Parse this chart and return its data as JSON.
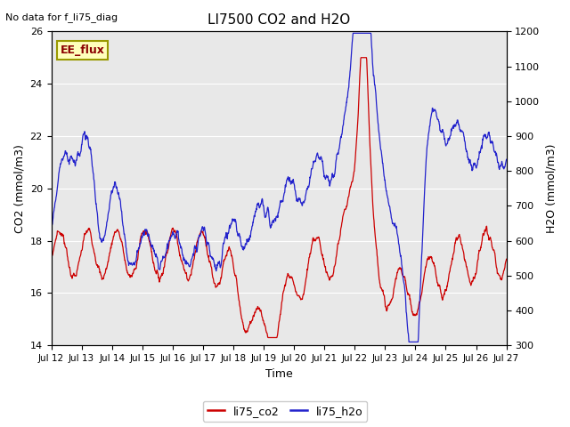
{
  "title": "LI7500 CO2 and H2O",
  "xlabel": "Time",
  "ylabel_left": "CO2 (mmol/m3)",
  "ylabel_right": "H2O (mmol/m3)",
  "top_left_text": "No data for f_li75_diag",
  "annotation_text": "EE_flux",
  "ylim_left": [
    14,
    26
  ],
  "ylim_right": [
    300,
    1200
  ],
  "yticks_left": [
    14,
    16,
    18,
    20,
    22,
    24,
    26
  ],
  "yticks_right": [
    300,
    400,
    500,
    600,
    700,
    800,
    900,
    1000,
    1100,
    1200
  ],
  "xtick_labels": [
    "Jul 12",
    "Jul 13",
    "Jul 14",
    "Jul 15",
    "Jul 16",
    "Jul 17",
    "Jul 18",
    "Jul 19",
    "Jul 20",
    "Jul 21",
    "Jul 22",
    "Jul 23",
    "Jul 24",
    "Jul 25",
    "Jul 26",
    "Jul 27"
  ],
  "color_co2": "#cc0000",
  "color_h2o": "#2222cc",
  "legend_co2": "li75_co2",
  "legend_h2o": "li75_h2o",
  "background_color": "#e8e8e8",
  "fig_background": "#ffffff",
  "annotation_bg": "#ffffbb",
  "annotation_border": "#999900",
  "linewidth": 0.9
}
